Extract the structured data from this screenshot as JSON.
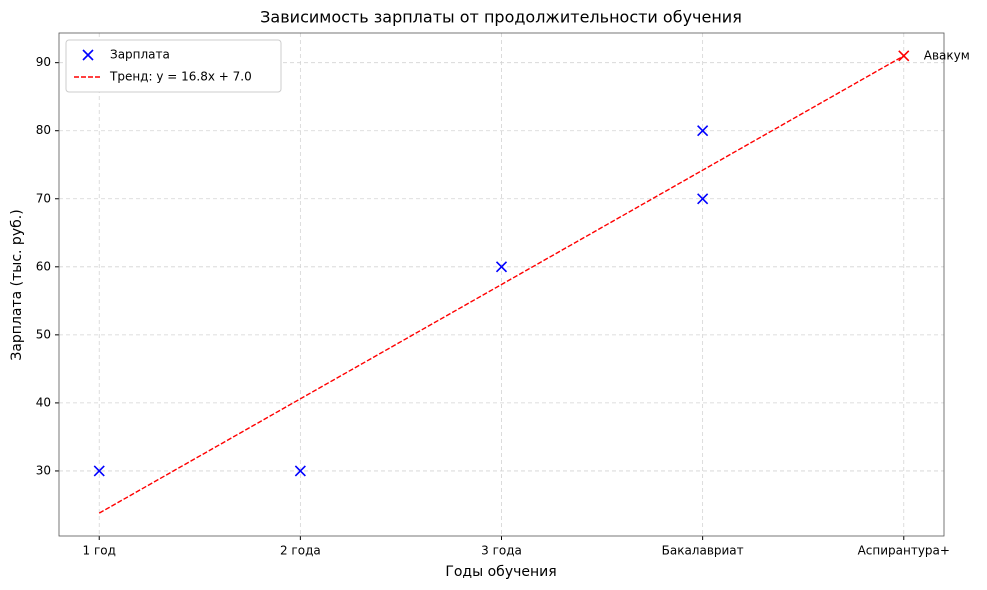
{
  "chart_data": {
    "type": "scatter",
    "title": "Зависимость зарплаты от продолжительности обучения",
    "xlabel": "Годы обучения",
    "ylabel": "Зарплата (тыс. руб.)",
    "xlim": [
      0.8,
      5.2
    ],
    "ylim": [
      20.44,
      94.36
    ],
    "xticks": [
      {
        "value": 1,
        "label": "1 год"
      },
      {
        "value": 2,
        "label": "2 года"
      },
      {
        "value": 3,
        "label": "3 года"
      },
      {
        "value": 4,
        "label": "Бакалавриат"
      },
      {
        "value": 5,
        "label": "Аспирантура+"
      }
    ],
    "yticks": [
      30,
      40,
      50,
      60,
      70,
      80,
      90
    ],
    "grid": true,
    "legend": "upper left",
    "series": [
      {
        "name": "Зарплата",
        "color": "#0000ff",
        "marker": "x",
        "x": [
          1,
          2,
          3,
          4,
          4
        ],
        "values": [
          30,
          30,
          60,
          70,
          80
        ]
      },
      {
        "name": "Тренд: y = 16.8x + 7.0",
        "color": "#ff0000",
        "type": "line",
        "style": "dashed",
        "x": [
          1,
          2,
          3,
          4,
          5
        ],
        "values": [
          23.8,
          40.6,
          57.4,
          74.2,
          91.0
        ]
      }
    ],
    "annotations": [
      {
        "text": "Авакум",
        "x": 5,
        "y": 91,
        "color": "#ff0000"
      }
    ]
  }
}
